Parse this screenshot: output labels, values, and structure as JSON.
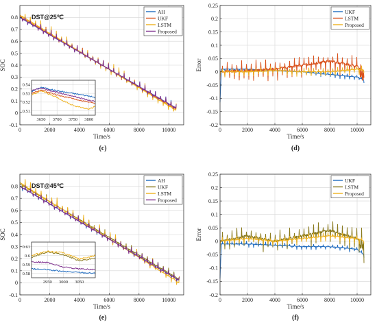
{
  "colors": {
    "blue": "#1f6bbf",
    "red": "#d9531e",
    "yellow": "#eeb220",
    "purple": "#7e2f8e",
    "olive": "#8a7a1e"
  },
  "chart_data": [
    {
      "panel": "(c)",
      "type": "line",
      "title": "DST@25℃",
      "xlabel": "Time/s",
      "ylabel": "SOC",
      "xlim": [
        0,
        11000
      ],
      "ylim": [
        -0.1,
        0.9
      ],
      "xticks": [
        0,
        2000,
        4000,
        6000,
        8000,
        10000
      ],
      "yticks": [
        -0.1,
        0,
        0.1,
        0.2,
        0.3,
        0.4,
        0.5,
        0.6,
        0.7,
        0.8
      ],
      "grid": true,
      "legend_position": "top-right",
      "series": [
        {
          "name": "AH",
          "color": "blue",
          "x": [
            0,
            10500
          ],
          "y": [
            0.8,
            0.04
          ]
        },
        {
          "name": "UKF",
          "color": "red",
          "x": [
            0,
            10500
          ],
          "y": [
            0.81,
            0.03
          ]
        },
        {
          "name": "LSTM",
          "color": "yellow",
          "x": [
            0,
            10500
          ],
          "y": [
            0.82,
            0.02
          ]
        },
        {
          "name": "Proposed",
          "color": "purple",
          "x": [
            0,
            10500
          ],
          "y": [
            0.8,
            0.04
          ]
        }
      ],
      "inset": {
        "xlim": [
          3620,
          3820
        ],
        "ylim": [
          0.505,
          0.545
        ],
        "xticks": [
          3650,
          3700,
          3750,
          3800
        ],
        "yticks": [
          0.51,
          0.52,
          0.53,
          0.54
        ],
        "series": [
          {
            "color": "blue",
            "x": [
              3620,
              3650,
              3700,
              3750,
              3800,
              3820
            ],
            "y": [
              0.532,
              0.537,
              0.533,
              0.53,
              0.527,
              0.525
            ]
          },
          {
            "color": "red",
            "x": [
              3620,
              3650,
              3700,
              3750,
              3800,
              3820
            ],
            "y": [
              0.53,
              0.534,
              0.528,
              0.524,
              0.52,
              0.519
            ]
          },
          {
            "color": "yellow",
            "x": [
              3620,
              3650,
              3700,
              3750,
              3800,
              3820
            ],
            "y": [
              0.528,
              0.533,
              0.525,
              0.516,
              0.512,
              0.515
            ]
          },
          {
            "color": "purple",
            "x": [
              3620,
              3650,
              3700,
              3750,
              3800,
              3820
            ],
            "y": [
              0.533,
              0.536,
              0.531,
              0.527,
              0.522,
              0.521
            ]
          }
        ]
      }
    },
    {
      "panel": "(d)",
      "type": "line",
      "xlabel": "Time/s",
      "ylabel": "Error",
      "xlim": [
        0,
        11000
      ],
      "ylim": [
        -0.2,
        0.25
      ],
      "xticks": [
        0,
        2000,
        4000,
        6000,
        8000,
        10000
      ],
      "yticks": [
        -0.2,
        -0.15,
        -0.1,
        -0.05,
        0,
        0.05,
        0.1,
        0.15,
        0.2,
        0.25
      ],
      "grid": true,
      "legend_position": "top-right",
      "series": [
        {
          "name": "UKF",
          "color": "blue",
          "x": [
            0,
            2000,
            4000,
            6000,
            8000,
            10000,
            10500
          ],
          "y": [
            0.01,
            0.01,
            0.005,
            0.0,
            -0.01,
            -0.02,
            -0.03
          ]
        },
        {
          "name": "LSTM",
          "color": "red",
          "x": [
            0,
            2000,
            4000,
            6000,
            8000,
            10000,
            10500
          ],
          "y": [
            0.0,
            0.005,
            0.01,
            0.025,
            0.04,
            0.02,
            0.0
          ]
        },
        {
          "name": "Proposed",
          "color": "yellow",
          "x": [
            0,
            2000,
            4000,
            6000,
            8000,
            10000,
            10500
          ],
          "y": [
            0.0,
            0.0,
            0.005,
            0.0,
            0.0,
            0.01,
            0.005
          ]
        }
      ]
    },
    {
      "panel": "(e)",
      "type": "line",
      "title": "DST@45℃",
      "xlabel": "Time/s",
      "ylabel": "SOC",
      "xlim": [
        0,
        11000
      ],
      "ylim": [
        -0.1,
        0.9
      ],
      "xticks": [
        0,
        2000,
        4000,
        6000,
        8000,
        10000
      ],
      "yticks": [
        -0.1,
        0,
        0.1,
        0.2,
        0.3,
        0.4,
        0.5,
        0.6,
        0.7,
        0.8
      ],
      "grid": true,
      "legend_position": "top-right",
      "series": [
        {
          "name": "AH",
          "color": "blue",
          "x": [
            0,
            10700
          ],
          "y": [
            0.8,
            0.02
          ]
        },
        {
          "name": "UKF",
          "color": "olive",
          "x": [
            0,
            10700
          ],
          "y": [
            0.82,
            0.03
          ]
        },
        {
          "name": "LSTM",
          "color": "yellow",
          "x": [
            0,
            10700
          ],
          "y": [
            0.83,
            0.0
          ]
        },
        {
          "name": "Proposed",
          "color": "purple",
          "x": [
            0,
            10700
          ],
          "y": [
            0.8,
            0.02
          ]
        }
      ],
      "inset": {
        "xlim": [
          2900,
          3100
        ],
        "ylim": [
          0.575,
          0.615
        ],
        "xticks": [
          2950,
          3000,
          3050
        ],
        "yticks": [
          0.58,
          0.59,
          0.6,
          0.61
        ],
        "series": [
          {
            "color": "blue",
            "x": [
              2900,
              2950,
              3000,
              3050,
              3100
            ],
            "y": [
              0.585,
              0.584,
              0.582,
              0.581,
              0.58
            ]
          },
          {
            "color": "olive",
            "x": [
              2900,
              2950,
              3000,
              3050,
              3100
            ],
            "y": [
              0.598,
              0.604,
              0.601,
              0.594,
              0.597
            ]
          },
          {
            "color": "yellow",
            "x": [
              2900,
              2950,
              3000,
              3050,
              3100
            ],
            "y": [
              0.6,
              0.605,
              0.603,
              0.596,
              0.6
            ]
          },
          {
            "color": "purple",
            "x": [
              2900,
              2950,
              3000,
              3050,
              3100
            ],
            "y": [
              0.593,
              0.592,
              0.587,
              0.585,
              0.584
            ]
          }
        ]
      }
    },
    {
      "panel": "(f)",
      "type": "line",
      "xlabel": "Time/s",
      "ylabel": "Error",
      "xlim": [
        0,
        11000
      ],
      "ylim": [
        -0.2,
        0.25
      ],
      "xticks": [
        0,
        2000,
        4000,
        6000,
        8000,
        10000
      ],
      "yticks": [
        -0.2,
        -0.15,
        -0.1,
        -0.05,
        0,
        0.05,
        0.1,
        0.15,
        0.2,
        0.25
      ],
      "grid": true,
      "legend_position": "top-right",
      "series": [
        {
          "name": "UKF",
          "color": "blue",
          "x": [
            0,
            2000,
            4000,
            6000,
            8000,
            10000,
            10500
          ],
          "y": [
            -0.01,
            -0.01,
            -0.015,
            -0.02,
            -0.02,
            -0.03,
            -0.05
          ]
        },
        {
          "name": "LSTM",
          "color": "olive",
          "x": [
            0,
            2000,
            4000,
            6000,
            8000,
            10000,
            10500
          ],
          "y": [
            0.0,
            0.02,
            0.0,
            0.02,
            0.04,
            0.01,
            0.0
          ]
        },
        {
          "name": "Proposed",
          "color": "yellow",
          "x": [
            0,
            2000,
            4000,
            6000,
            8000,
            10000,
            10500
          ],
          "y": [
            0.0,
            0.01,
            0.0,
            0.01,
            0.02,
            0.01,
            0.0
          ]
        }
      ]
    }
  ]
}
